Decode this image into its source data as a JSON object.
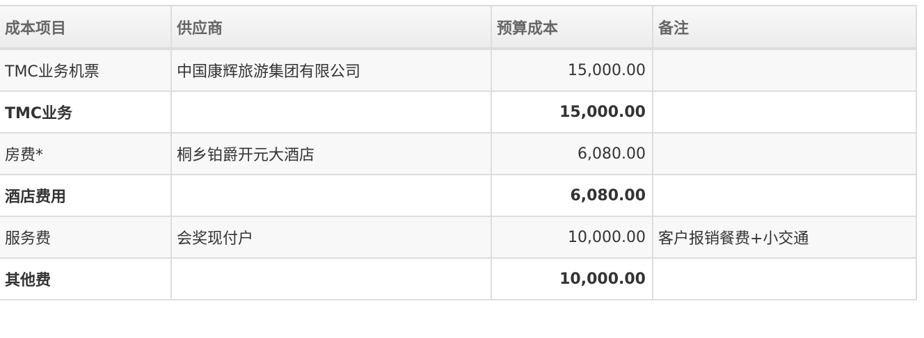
{
  "table": {
    "headers": [
      "成本项目",
      "供应商",
      "预算成本",
      "备注"
    ],
    "rows": [
      {
        "type": "detail",
        "item": "TMC业务机票",
        "supplier": "中国康辉旅游集团有限公司",
        "cost": "15,000.00",
        "note": ""
      },
      {
        "type": "subtotal",
        "item": "TMC业务",
        "supplier": "",
        "cost": "15,000.00",
        "note": ""
      },
      {
        "type": "detail",
        "item": "房费*",
        "supplier": "桐乡铂爵开元大酒店",
        "cost": "6,080.00",
        "note": ""
      },
      {
        "type": "subtotal",
        "item": "酒店费用",
        "supplier": "",
        "cost": "6,080.00",
        "note": ""
      },
      {
        "type": "detail",
        "item": "服务费",
        "supplier": "会奖现付户",
        "cost": "10,000.00",
        "note": "客户报销餐费+小交通"
      },
      {
        "type": "subtotal",
        "item": "其他费",
        "supplier": "",
        "cost": "10,000.00",
        "note": ""
      }
    ]
  }
}
